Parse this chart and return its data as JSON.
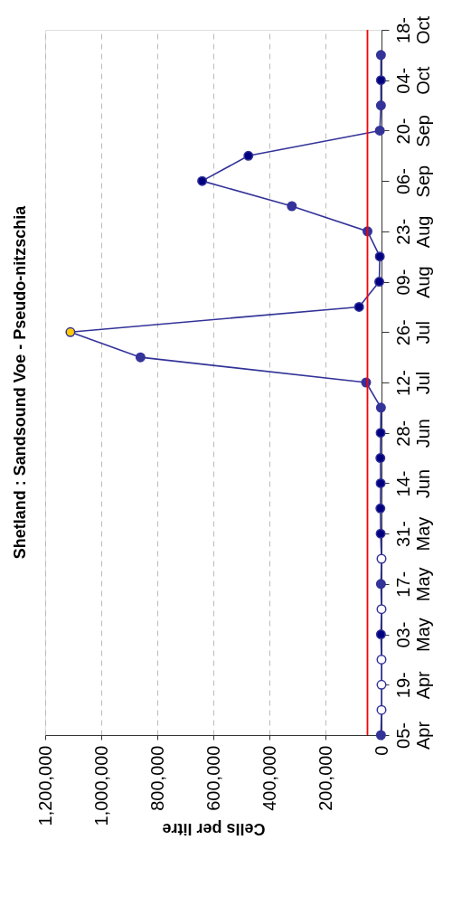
{
  "chart_data": {
    "type": "line",
    "orientation": "horizontal",
    "title": "Shetland : Sandsound Voe - Pseudo-nitzschia",
    "xlabel": "Cells per litre",
    "categories": [
      "18-\nOct",
      null,
      "04-\nOct",
      null,
      "20-\nSep",
      null,
      "06-\nSep",
      null,
      "23-\nAug",
      null,
      "09-\nAug",
      null,
      "26-\nJul",
      null,
      "12-\nJul",
      null,
      "28-\nJun",
      null,
      "14-\nJun",
      null,
      "31-\nMay",
      null,
      "17-\nMay",
      null,
      "03-\nMay",
      null,
      "19-\nApr",
      null,
      "05-\nApr"
    ],
    "series": [
      {
        "color": "#333399",
        "values": [
          null,
          2000,
          2000,
          2000,
          6000,
          475000,
          640000,
          320000,
          50000,
          6000,
          8000,
          80000,
          1110000,
          860000,
          55000,
          2000,
          3000,
          4000,
          3000,
          4000,
          3000,
          0,
          2000,
          0,
          2000,
          0,
          0,
          0,
          2000
        ],
        "colors": [
          null,
          "#333399",
          "#000080",
          "#333399",
          "#333399",
          "#000080",
          "#000080",
          "#333399",
          "#333399",
          "#000080",
          "#000080",
          "#000080",
          "#ffcc00",
          "#333399",
          "#333399",
          "#333399",
          "#000080",
          "#000080",
          "#000080",
          "#000080",
          "#000080",
          "#ffffff",
          "#333399",
          "#ffffff",
          "#000080",
          "#ffffff",
          "#ffffff",
          "#ffffff",
          "#333399"
        ]
      }
    ],
    "xlim": [
      1200000,
      0
    ],
    "xticks": [
      0,
      {
        "value": 200000,
        "label": "200,000"
      },
      {
        "value": 400000,
        "label": "400,000"
      },
      {
        "value": 600000,
        "label": "600,000"
      },
      {
        "value": 800000,
        "label": "800,000"
      },
      {
        "value": 1000000,
        "label": "1,000,000"
      },
      {
        "value": 1200000,
        "label": "1,200,000"
      }
    ],
    "ref_lines": [
      {
        "axis": "x",
        "value": 50000,
        "color": "#ff0000"
      }
    ],
    "grid": "x",
    "marker": "circle",
    "line_style": "solid"
  }
}
